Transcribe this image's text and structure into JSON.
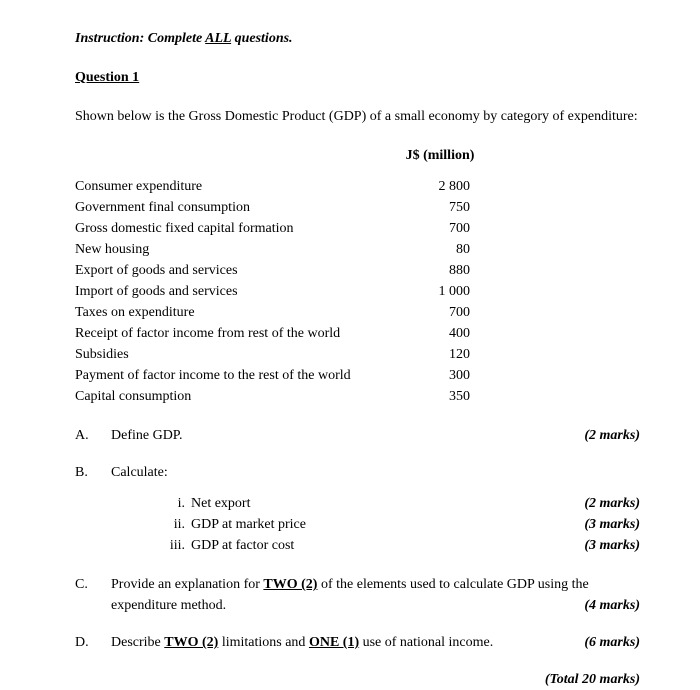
{
  "instruction": {
    "prefix": "Instruction: Complete ",
    "underlined": "ALL",
    "suffix": " questions."
  },
  "question_heading": "Question 1",
  "intro": "Shown below is the Gross Domestic Product (GDP) of a small economy by category of expenditure:",
  "table": {
    "header": "J$ (million)",
    "rows": [
      {
        "label": "Consumer expenditure",
        "value": "2 800"
      },
      {
        "label": "Government final consumption",
        "value": "750"
      },
      {
        "label": "Gross domestic fixed capital formation",
        "value": "700"
      },
      {
        "label": "New housing",
        "value": "80"
      },
      {
        "label": "Export of goods and services",
        "value": "880"
      },
      {
        "label": "Import of goods and services",
        "value": "1 000"
      },
      {
        "label": "Taxes on expenditure",
        "value": "700"
      },
      {
        "label": "Receipt of factor income from rest of the world",
        "value": "400"
      },
      {
        "label": "Subsidies",
        "value": "120"
      },
      {
        "label": "Payment of factor income to the rest of the world",
        "value": "300"
      },
      {
        "label": "Capital consumption",
        "value": "350"
      }
    ]
  },
  "parts": {
    "a": {
      "letter": "A.",
      "text": "Define GDP.",
      "marks": "(2 marks)"
    },
    "b": {
      "letter": "B.",
      "text": "Calculate:",
      "subs": [
        {
          "num": "i.",
          "text": "Net export",
          "marks": "(2 marks)"
        },
        {
          "num": "ii.",
          "text": "GDP at market price",
          "marks": "(3 marks)"
        },
        {
          "num": "iii.",
          "text": "GDP at factor cost",
          "marks": "(3 marks)"
        }
      ]
    },
    "c": {
      "letter": "C.",
      "line1_pre": "Provide an explanation for ",
      "line1_bold": "TWO (2)",
      "line1_post": " of the elements used to calculate GDP using the",
      "line2": "expenditure method.",
      "marks": "(4 marks)"
    },
    "d": {
      "letter": "D.",
      "pre": "Describe ",
      "bold1": "TWO (2)",
      "mid": " limitations and ",
      "bold2": "ONE (1)",
      "post": " use of national income.",
      "marks": "(6 marks)"
    }
  },
  "total": "(Total 20 marks)"
}
